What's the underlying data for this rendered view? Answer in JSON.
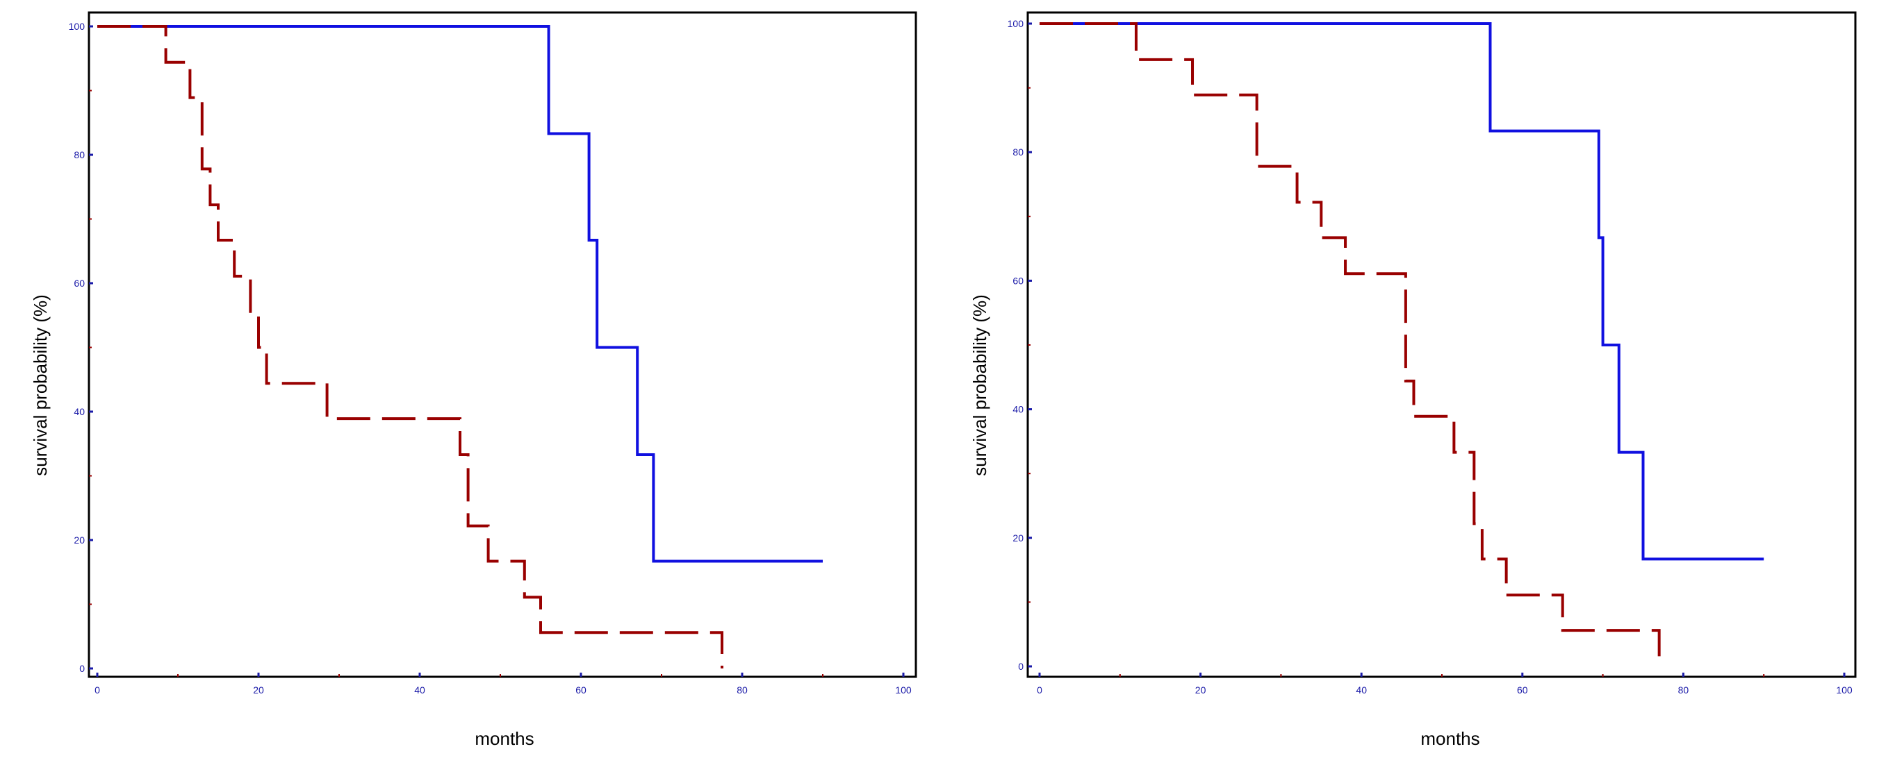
{
  "chart_data": [
    {
      "type": "line",
      "step": true,
      "xlabel": "months",
      "ylabel": "survival probability (%)",
      "xlim": [
        0,
        100
      ],
      "ylim": [
        0,
        100
      ],
      "x_ticks": [
        0,
        20,
        40,
        60,
        80,
        100
      ],
      "x_tick_labels": [
        "0",
        "20",
        "40",
        "60",
        "80",
        "100"
      ],
      "y_ticks": [
        0,
        20,
        40,
        60,
        80,
        100
      ],
      "y_tick_labels": [
        "0",
        "20",
        "40",
        "60",
        "80",
        "100"
      ],
      "grid": false,
      "series": [
        {
          "color": "#1010e0",
          "style": "solid",
          "x": [
            0,
            56,
            61,
            62,
            67,
            69,
            90
          ],
          "y": [
            100,
            83.3,
            66.7,
            50,
            33.3,
            16.7,
            16.7
          ]
        },
        {
          "color": "#990000",
          "style": "dashed",
          "x": [
            0,
            8.5,
            11.5,
            13,
            14,
            15,
            17,
            19,
            20,
            21,
            28.5,
            45,
            46,
            48.5,
            53,
            55,
            58,
            77.5
          ],
          "y": [
            100,
            94.4,
            88.9,
            77.8,
            72.2,
            66.7,
            61.1,
            55.6,
            50,
            44.4,
            38.9,
            33.3,
            22.2,
            16.7,
            11.1,
            5.6,
            5.6,
            0
          ]
        }
      ]
    },
    {
      "type": "line",
      "step": true,
      "xlabel": "months",
      "ylabel": "survival probability (%)",
      "xlim": [
        0,
        100
      ],
      "ylim": [
        0,
        100
      ],
      "x_ticks": [
        0,
        20,
        40,
        60,
        80,
        100
      ],
      "x_tick_labels": [
        "0",
        "20",
        "40",
        "60",
        "80",
        "100"
      ],
      "y_ticks": [
        0,
        20,
        40,
        60,
        80,
        100
      ],
      "y_tick_labels": [
        "0",
        "20",
        "40",
        "60",
        "80",
        "100"
      ],
      "grid": false,
      "series": [
        {
          "color": "#1010e0",
          "style": "solid",
          "x": [
            0,
            56,
            69.5,
            70,
            72,
            75,
            90
          ],
          "y": [
            100,
            83.3,
            66.7,
            50,
            33.3,
            16.7,
            16.7
          ]
        },
        {
          "color": "#990000",
          "style": "dashed",
          "x": [
            0,
            12,
            19,
            27,
            32,
            35,
            38,
            45.5,
            46.5,
            51.5,
            54,
            55,
            58,
            65,
            77
          ],
          "y": [
            100,
            94.4,
            88.9,
            77.8,
            72.2,
            66.7,
            61.1,
            44.4,
            38.9,
            33.3,
            22.2,
            16.7,
            11.1,
            5.6,
            0
          ]
        }
      ]
    }
  ]
}
